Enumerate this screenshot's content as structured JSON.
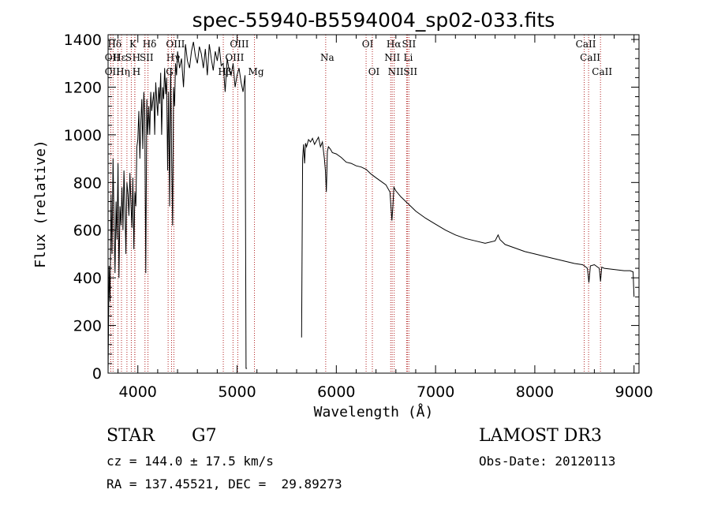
{
  "chart_data": {
    "type": "line",
    "title": "spec-55940-B5594004_sp02-033.fits",
    "xlabel": "Wavelength (Å)",
    "ylabel": "Flux (relative)",
    "xlim": [
      3700,
      9050
    ],
    "ylim": [
      0,
      1420
    ],
    "xticks": [
      4000,
      5000,
      6000,
      7000,
      8000,
      9000
    ],
    "yticks": [
      0,
      200,
      400,
      600,
      800,
      1000,
      1200,
      1400
    ],
    "grid": false,
    "series": [
      {
        "segments": [
          {
            "x": [
              3700,
              3710,
              3720,
              3730,
              3740,
              3750,
              3760,
              3770,
              3780,
              3790,
              3800,
              3810,
              3820,
              3830,
              3840,
              3850,
              3860,
              3870,
              3880,
              3890,
              3900,
              3910,
              3920,
              3930,
              3940,
              3950,
              3960,
              3970,
              3980,
              3990,
              4000,
              4010,
              4020,
              4030,
              4040,
              4050,
              4060,
              4070,
              4080,
              4090,
              4100,
              4110,
              4120,
              4130,
              4140,
              4150,
              4160,
              4170,
              4180,
              4190,
              4200,
              4210,
              4220,
              4230,
              4240,
              4250,
              4260,
              4270,
              4280,
              4290,
              4300,
              4310,
              4320,
              4330,
              4340,
              4350,
              4360,
              4370,
              4380,
              4390,
              4400,
              4420,
              4440,
              4460,
              4480,
              4500,
              4520,
              4540,
              4560,
              4580,
              4600,
              4620,
              4640,
              4660,
              4680,
              4700,
              4720,
              4740,
              4760,
              4780,
              4800,
              4820,
              4840,
              4860,
              4880,
              4900,
              4920,
              4940,
              4960,
              4980,
              5000,
              5020,
              5040,
              5060,
              5080,
              5090,
              5100
            ],
            "y": [
              0,
              450,
              300,
              750,
              500,
              900,
              650,
              420,
              720,
              560,
              880,
              400,
              700,
              620,
              780,
              600,
              850,
              700,
              500,
              800,
              750,
              660,
              840,
              720,
              610,
              820,
              520,
              760,
              700,
              950,
              980,
              1100,
              900,
              1050,
              1150,
              940,
              1180,
              1080,
              420,
              1150,
              1000,
              1120,
              1000,
              1180,
              1100,
              1140,
              1180,
              1000,
              1220,
              1150,
              1080,
              1200,
              1130,
              1260,
              1000,
              1200,
              1150,
              1280,
              1170,
              1240,
              850,
              1180,
              700,
              1280,
              930,
              620,
              1200,
              1120,
              1300,
              1250,
              1350,
              1280,
              1320,
              1200,
              1380,
              1310,
              1280,
              1350,
              1390,
              1330,
              1300,
              1370,
              1340,
              1280,
              1360,
              1250,
              1380,
              1320,
              1270,
              1350,
              1310,
              1370,
              1290,
              1300,
              1180,
              1320,
              1270,
              1250,
              1300,
              1200,
              1250,
              1280,
              1220,
              1180,
              1250,
              20,
              20
            ]
          },
          {
            "x": [
              5650,
              5660,
              5670,
              5680,
              5690,
              5700,
              5720,
              5740,
              5760,
              5780,
              5800,
              5820,
              5840,
              5860,
              5880,
              5890,
              5900,
              5910,
              5920,
              5940,
              5960,
              6000,
              6050,
              6100,
              6150,
              6200,
              6250,
              6300,
              6350,
              6400,
              6450,
              6500,
              6540,
              6560,
              6570,
              6580,
              6600,
              6650,
              6700,
              6750,
              6800,
              6900,
              7000,
              7100,
              7200,
              7300,
              7400,
              7500,
              7600,
              7630,
              7650,
              7700,
              7800,
              7900,
              8000,
              8100,
              8200,
              8300,
              8400,
              8480,
              8500,
              8530,
              8545,
              8560,
              8600,
              8650,
              8662,
              8675,
              8700,
              8800,
              8900,
              8960,
              8990,
              9000
            ],
            "y": [
              150,
              900,
              960,
              880,
              965,
              950,
              980,
              970,
              985,
              960,
              975,
              990,
              950,
              970,
              900,
              850,
              760,
              930,
              950,
              940,
              925,
              920,
              905,
              885,
              880,
              870,
              865,
              855,
              835,
              820,
              805,
              790,
              760,
              640,
              700,
              780,
              765,
              740,
              720,
              700,
              680,
              650,
              625,
              600,
              580,
              565,
              555,
              545,
              555,
              580,
              560,
              540,
              525,
              510,
              500,
              490,
              480,
              470,
              460,
              455,
              450,
              440,
              380,
              450,
              455,
              440,
              385,
              445,
              440,
              435,
              430,
              430,
              425,
              320
            ]
          }
        ]
      }
    ],
    "line_markers": [
      {
        "label": "Hδ",
        "x": 3750,
        "row": 0
      },
      {
        "label": "OII",
        "x": 3727,
        "row": 1
      },
      {
        "label": "OII",
        "x": 3727,
        "row": 2
      },
      {
        "label": "Hε",
        "x": 3800,
        "row": 1
      },
      {
        "label": "Hη",
        "x": 3835,
        "row": 2
      },
      {
        "label": "K",
        "x": 3934,
        "row": 0
      },
      {
        "label": "H",
        "x": 3969,
        "row": 1
      },
      {
        "label": "S",
        "x": 3890,
        "row": 1
      },
      {
        "label": "H",
        "x": 3970,
        "row": 2
      },
      {
        "label": "Hδ",
        "x": 4102,
        "row": 0
      },
      {
        "label": "SII",
        "x": 4072,
        "row": 1
      },
      {
        "label": "OIII",
        "x": 4363,
        "row": 0
      },
      {
        "label": "Hγ",
        "x": 4340,
        "row": 1
      },
      {
        "label": "G",
        "x": 4305,
        "row": 2
      },
      {
        "label": "OIII",
        "x": 5007,
        "row": 0
      },
      {
        "label": "OIII",
        "x": 4959,
        "row": 1
      },
      {
        "label": "Hβ",
        "x": 4861,
        "row": 2
      },
      {
        "label": "Mg",
        "x": 5175,
        "row": 2
      },
      {
        "label": "Na",
        "x": 5893,
        "row": 1
      },
      {
        "label": "OI",
        "x": 6300,
        "row": 0
      },
      {
        "label": "OI",
        "x": 6363,
        "row": 2
      },
      {
        "label": "Hα",
        "x": 6563,
        "row": 0
      },
      {
        "label": "NII",
        "x": 6548,
        "row": 1
      },
      {
        "label": "NII",
        "x": 6583,
        "row": 2
      },
      {
        "label": "SII",
        "x": 6716,
        "row": 0
      },
      {
        "label": "Li",
        "x": 6708,
        "row": 1
      },
      {
        "label": "SII",
        "x": 6731,
        "row": 2
      },
      {
        "label": "CaII",
        "x": 8498,
        "row": 0
      },
      {
        "label": "CaII",
        "x": 8542,
        "row": 1
      },
      {
        "label": "CaII",
        "x": 8662,
        "row": 2
      }
    ]
  },
  "info": {
    "object_class": "STAR",
    "subclass": "G7",
    "redshift_line": "cz = 144.0 ± 17.5 km/s",
    "coords_line": "RA = 137.45521, DEC =  29.89273",
    "survey": "LAMOST DR3",
    "obs_date": "Obs-Date: 20120113"
  },
  "colors": {
    "line_marker": "#b22222",
    "spectrum": "#000000"
  }
}
